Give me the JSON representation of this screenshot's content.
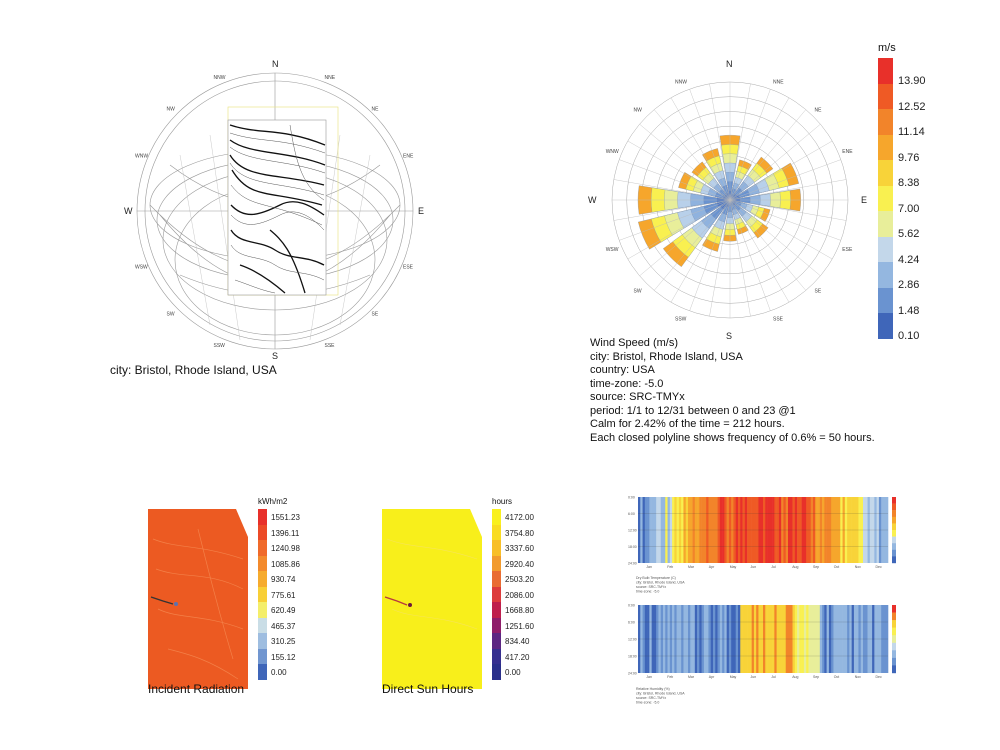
{
  "sunpath": {
    "compass": {
      "N": "N",
      "S": "S",
      "E": "E",
      "W": "W"
    },
    "minor_dirs": [
      "NNE",
      "NE",
      "ENE",
      "ESE",
      "SE",
      "SSE",
      "SSW",
      "SW",
      "WSW",
      "WNW",
      "NW",
      "NNW"
    ],
    "caption": "city: Bristol, Rhode Island, USA"
  },
  "windrose": {
    "compass": {
      "N": "N",
      "S": "S",
      "E": "E",
      "W": "W"
    },
    "minor_dirs": [
      "NNE",
      "NE",
      "ENE",
      "ESE",
      "SE",
      "SSE",
      "SSW",
      "SW",
      "WSW",
      "WNW",
      "NW",
      "NNW"
    ],
    "legend_title": "m/s",
    "legend_values": [
      "13.90",
      "12.52",
      "11.14",
      "9.76",
      "8.38",
      "7.00",
      "5.62",
      "4.24",
      "2.86",
      "1.48",
      "0.10"
    ],
    "legend_colors": [
      "#e8302a",
      "#ef5a25",
      "#f2842a",
      "#f6a62c",
      "#f8d339",
      "#f9f050",
      "#e8ee9a",
      "#c3d7ea",
      "#94b7e0",
      "#6a93d0",
      "#3f66b9"
    ],
    "info_lines": [
      "Wind Speed (m/s)",
      "city: Bristol, Rhode Island, USA",
      "country: USA",
      "time-zone: -5.0",
      "source: SRC-TMYx",
      "period: 1/1 to 12/31 between 0 and 23 @1",
      "Calm for 2.42% of the time = 212 hours.",
      "Each closed polyline shows frequency of 0.6% = 50 hours."
    ]
  },
  "radiation": {
    "unit": "kWh/m2",
    "values": [
      "1551.23",
      "1396.11",
      "1240.98",
      "1085.86",
      "930.74",
      "775.61",
      "620.49",
      "465.37",
      "310.25",
      "155.12",
      "0.00"
    ],
    "colors": [
      "#e8302a",
      "#ec4a27",
      "#f06a2a",
      "#f38a2c",
      "#f6ab2e",
      "#f8cf36",
      "#f4ee6a",
      "#c9dde6",
      "#9ebde0",
      "#7196d0",
      "#3f66b9"
    ],
    "caption": "Incident Radiation"
  },
  "sunhours": {
    "unit": "hours",
    "values": [
      "4172.00",
      "3754.80",
      "3337.60",
      "2920.40",
      "2503.20",
      "2086.00",
      "1668.80",
      "1251.60",
      "834.40",
      "417.20",
      "0.00"
    ],
    "colors": [
      "#f9f01e",
      "#f9dc22",
      "#f8bf28",
      "#f29b2e",
      "#e96d33",
      "#dd3c3c",
      "#bf1f4c",
      "#8f1d6a",
      "#5c2682",
      "#362f8f",
      "#2a2f8a"
    ],
    "caption": "Direct Sun Hours"
  },
  "heatmaps": {
    "months": [
      "Jan",
      "Feb",
      "Mar",
      "Apr",
      "May",
      "Jun",
      "Jul",
      "Aug",
      "Sep",
      "Oct",
      "Nov",
      "Dec"
    ],
    "hours": [
      "0:00",
      "6:00",
      "12:00",
      "18:00",
      "24:00"
    ],
    "caption_lines_1": [
      "Dry Bulb Temperature (C)",
      "city: Bristol, Rhode Island, USA",
      "source: SRC-TMYx",
      "time-zone: -5.0"
    ],
    "caption_lines_2": [
      "Relative Humidity (%)",
      "city: Bristol, Rhode Island, USA",
      "source: SRC-TMYx",
      "time-zone: -5.0"
    ]
  }
}
